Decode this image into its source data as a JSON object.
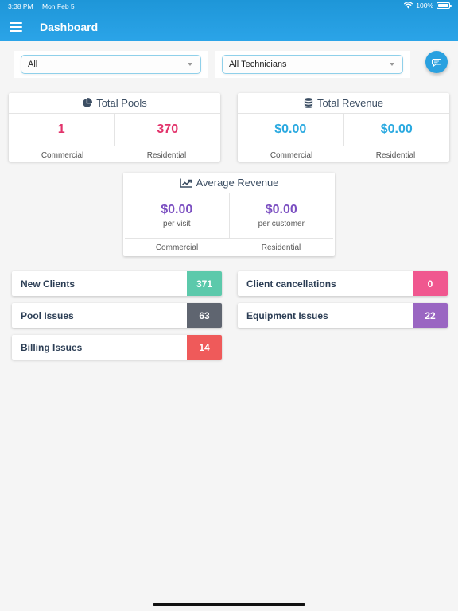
{
  "status_bar": {
    "time": "3:38 PM",
    "date": "Mon Feb 5",
    "battery": "100%"
  },
  "header": {
    "title": "Dashboard"
  },
  "filters": {
    "type": {
      "value": "All"
    },
    "technician": {
      "value": "All Technicians"
    }
  },
  "total_pools": {
    "title": "Total Pools",
    "commercial_value": "1",
    "residential_value": "370",
    "commercial_label": "Commercial",
    "residential_label": "Residential"
  },
  "total_revenue": {
    "title": "Total Revenue",
    "commercial_value": "$0.00",
    "residential_value": "$0.00",
    "commercial_label": "Commercial",
    "residential_label": "Residential"
  },
  "average_revenue": {
    "title": "Average Revenue",
    "per_visit_value": "$0.00",
    "per_visit_label": "per visit",
    "per_customer_value": "$0.00",
    "per_customer_label": "per customer",
    "commercial_label": "Commercial",
    "residential_label": "Residential"
  },
  "issues": {
    "new_clients": {
      "label": "New Clients",
      "count": "371",
      "color": "#5cc9ab"
    },
    "client_cancellations": {
      "label": "Client cancellations",
      "count": "0",
      "color": "#f0578f"
    },
    "pool_issues": {
      "label": "Pool Issues",
      "count": "63",
      "color": "#5f6570"
    },
    "equipment_issues": {
      "label": "Equipment Issues",
      "count": "22",
      "color": "#9a66c2"
    },
    "billing_issues": {
      "label": "Billing Issues",
      "count": "14",
      "color": "#ef5a5a"
    }
  },
  "colors": {
    "header": "#2aa1e0",
    "pink": "#e2336b",
    "blue": "#2aa9e0",
    "purple": "#7b4fc1"
  }
}
